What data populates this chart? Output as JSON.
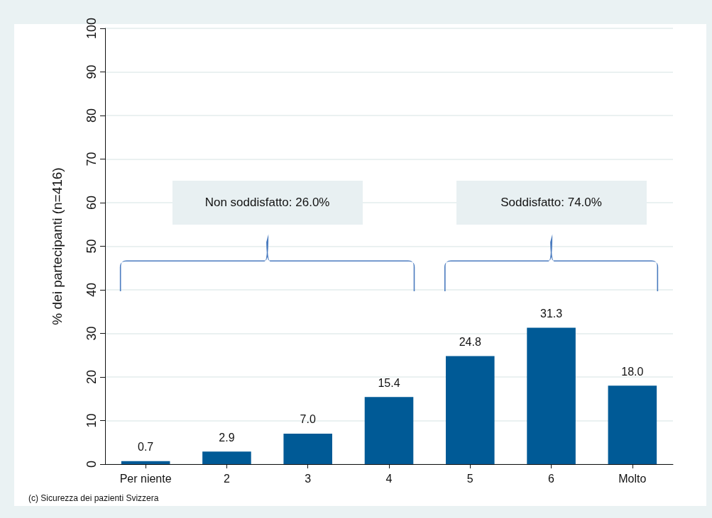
{
  "chart_data": {
    "type": "bar",
    "ylabel": "% dei partecipanti (n=416)",
    "categories": [
      "Per niente",
      "2",
      "3",
      "4",
      "5",
      "6",
      "Molto"
    ],
    "values": [
      0.7,
      2.9,
      7.0,
      15.4,
      24.8,
      31.3,
      18.0
    ],
    "color": "#005a96",
    "value_labels": [
      "0.7",
      "2.9",
      "7.0",
      "15.4",
      "24.8",
      "31.3",
      "18.0"
    ],
    "ylim": [
      0,
      100
    ],
    "yticks": [
      0,
      10,
      20,
      30,
      40,
      50,
      60,
      70,
      80,
      90,
      100
    ],
    "grid": "y",
    "annotations": [
      "Non soddisfatto: 26.0%",
      "Soddisfatto: 74.0%",
      "(c) Sicurezza dei pazienti Svizzera"
    ]
  }
}
